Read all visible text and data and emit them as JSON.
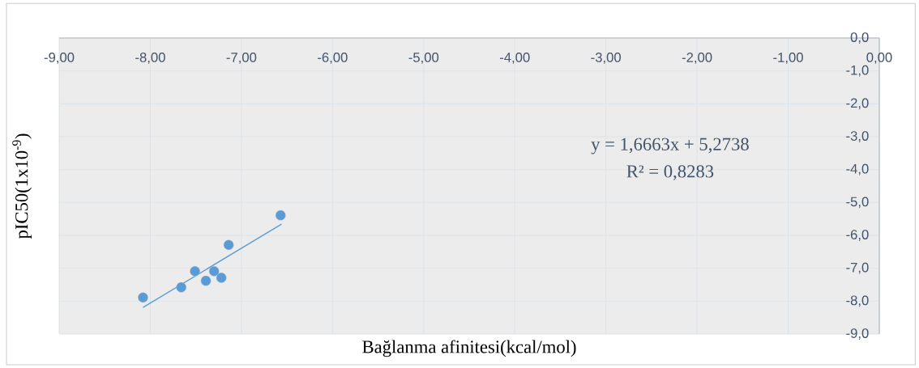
{
  "chart_data": {
    "type": "scatter",
    "xlabel": "Bağlanma afinitesi(kcal/mol)",
    "ylabel": "pIC50(1x10$^{-9}$)",
    "annotations": [
      "y = 1,6663x + 5,2738",
      "R² = 0,8283"
    ],
    "series": [
      {
        "color": "#5b9bd5",
        "marker": "circle",
        "x": [
          -8.08,
          -7.66,
          -7.51,
          -7.39,
          -7.3,
          -7.22,
          -7.14,
          -6.57
        ],
        "values": [
          -7.89,
          -7.58,
          -7.09,
          -7.38,
          -7.09,
          -7.29,
          -6.29,
          -5.39
        ]
      },
      {
        "type": "line",
        "color": "#5b9bd5",
        "marker": "none",
        "line_style": "solid",
        "x": [
          -8.08,
          -6.56
        ],
        "values": [
          -8.19,
          -5.66
        ]
      }
    ],
    "xlim": [
      -9,
      0
    ],
    "ylim": [
      -9,
      0
    ],
    "xticks": [
      {
        "value": -9,
        "label": "-9,00"
      },
      {
        "value": -8,
        "label": "-8,00"
      },
      {
        "value": -7,
        "label": "-7,00"
      },
      {
        "value": -6,
        "label": "-6,00"
      },
      {
        "value": -5,
        "label": "-5,00"
      },
      {
        "value": -4,
        "label": "-4,00"
      },
      {
        "value": -3,
        "label": "-3,00"
      },
      {
        "value": -2,
        "label": "-2,00"
      },
      {
        "value": -1,
        "label": "-1,00"
      },
      {
        "value": 0,
        "label": "0,00"
      }
    ],
    "yticks": [
      {
        "value": 0,
        "label": "0,0"
      },
      {
        "value": -1,
        "label": "-1,0"
      },
      {
        "value": -2,
        "label": "-2,0"
      },
      {
        "value": -3,
        "label": "-3,0"
      },
      {
        "value": -4,
        "label": "-4,0"
      },
      {
        "value": -5,
        "label": "-5,0"
      },
      {
        "value": -6,
        "label": "-6,0"
      },
      {
        "value": -7,
        "label": "-7,0"
      },
      {
        "value": -8,
        "label": "-8,0"
      },
      {
        "value": -9,
        "label": "-9,0"
      }
    ],
    "grid": true
  }
}
